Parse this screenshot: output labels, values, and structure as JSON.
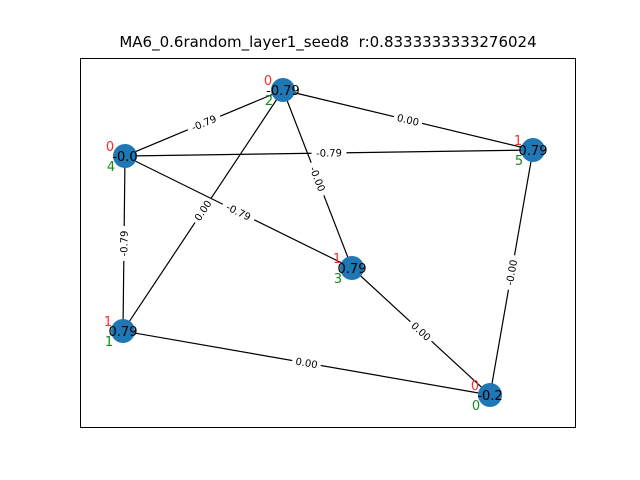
{
  "title": "MA6_0.6random_layer1_seed8  r:0.8333333333276024",
  "nodes": [
    {
      "id": "0",
      "value": "-0.2",
      "red": "0",
      "green": "0"
    },
    {
      "id": "1",
      "value": "0.79",
      "red": "1",
      "green": "1"
    },
    {
      "id": "2",
      "value": "-0.79",
      "red": "0",
      "green": "2"
    },
    {
      "id": "3",
      "value": "0.79",
      "red": "1",
      "green": "3"
    },
    {
      "id": "4",
      "value": "-0.0",
      "red": "0",
      "green": "4"
    },
    {
      "id": "5",
      "value": "0.79",
      "red": "1",
      "green": "5"
    }
  ],
  "edges": [
    {
      "from": "2",
      "to": "4",
      "label": "-0.79"
    },
    {
      "from": "2",
      "to": "5",
      "label": "0.00"
    },
    {
      "from": "2",
      "to": "3",
      "label": "-0.00"
    },
    {
      "from": "2",
      "to": "1",
      "label": "0.00"
    },
    {
      "from": "4",
      "to": "5",
      "label": "-0.79"
    },
    {
      "from": "4",
      "to": "3",
      "label": "-0.79"
    },
    {
      "from": "4",
      "to": "1",
      "label": "-0.79"
    },
    {
      "from": "5",
      "to": "0",
      "label": "-0.00"
    },
    {
      "from": "3",
      "to": "0",
      "label": "0.00"
    },
    {
      "from": "1",
      "to": "0",
      "label": "0.00"
    }
  ]
}
